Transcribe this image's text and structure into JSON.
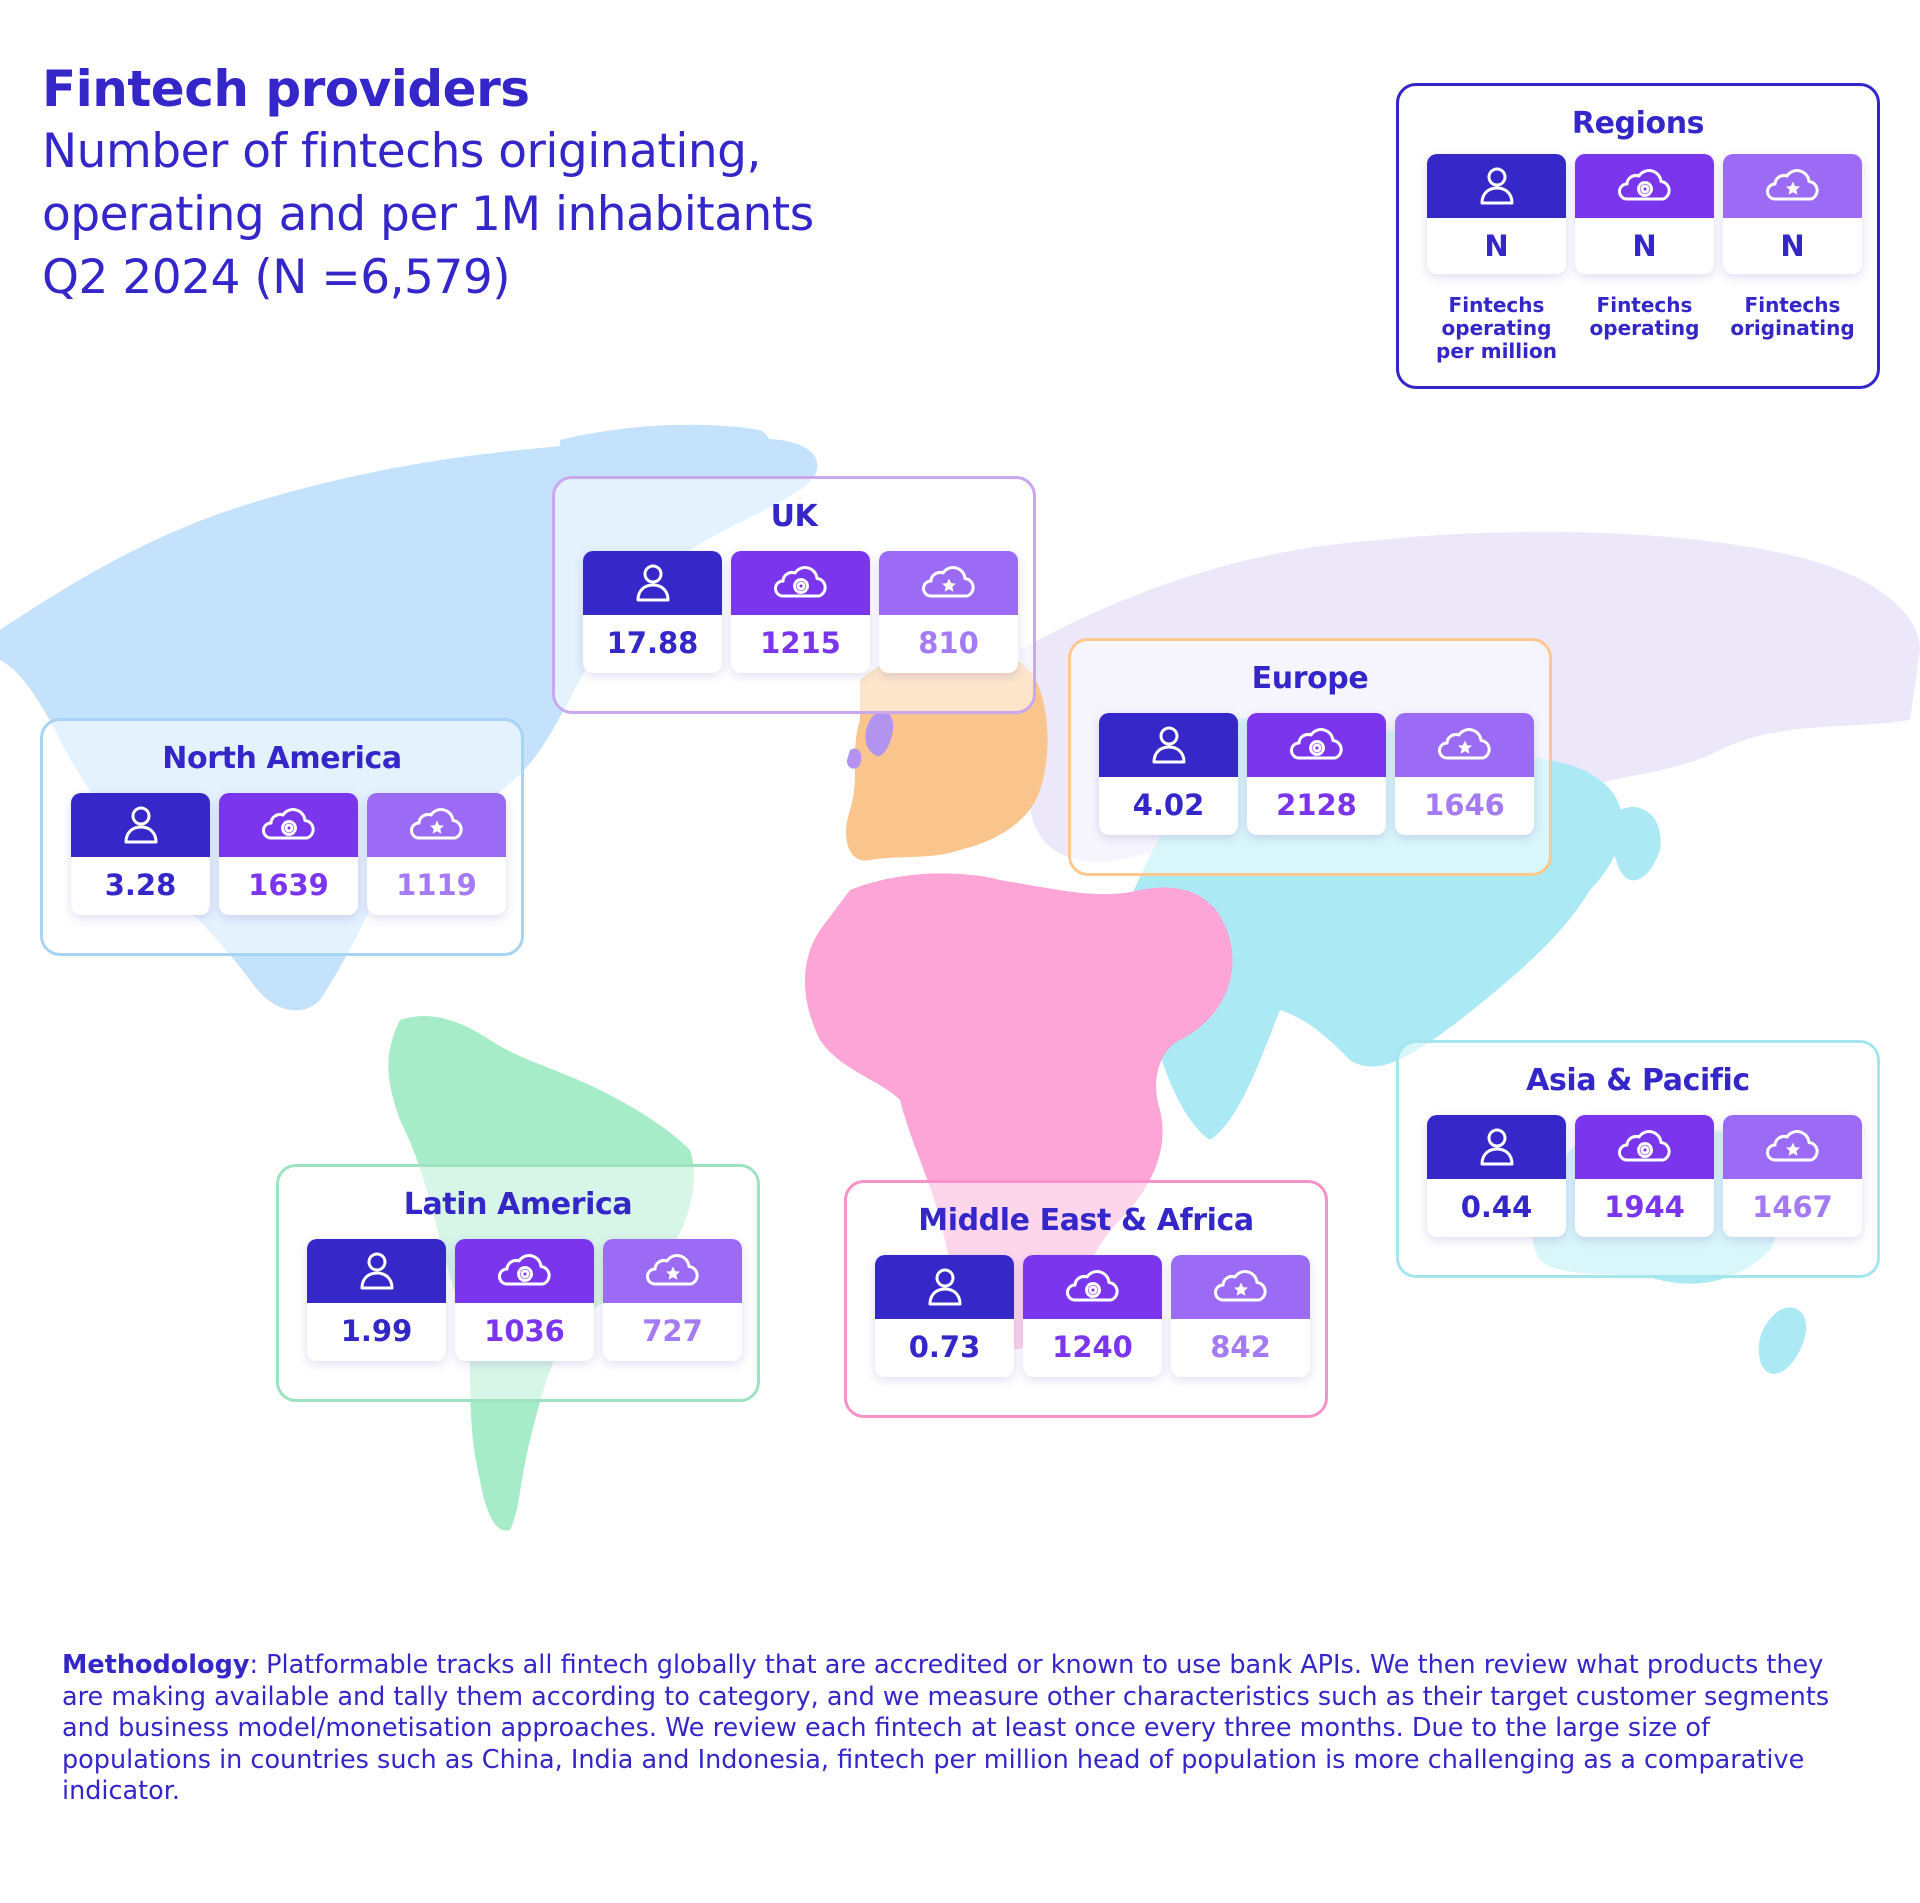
{
  "header": {
    "title": "Fintech providers",
    "subtitle_lines": [
      "Number of fintechs originating,",
      "operating and per 1M inhabitants",
      "Q2 2024 (N =6,579)"
    ]
  },
  "metric_icons": [
    "person-icon",
    "cloud-gear-icon",
    "cloud-star-icon"
  ],
  "legend": {
    "title": "Regions",
    "placeholder": "N",
    "labels": [
      [
        "Fintechs",
        "operating",
        "per million"
      ],
      [
        "Fintechs",
        "operating"
      ],
      [
        "Fintechs",
        "originating"
      ]
    ]
  },
  "regions": [
    {
      "name": "UK",
      "per_million": "17.88",
      "operating": "1215",
      "originating": "810",
      "border_color": "#c9a8ee",
      "map_color": "#b393f0"
    },
    {
      "name": "Europe",
      "per_million": "4.02",
      "operating": "2128",
      "originating": "1646",
      "border_color": "#fbc98f",
      "map_color": "#f9c58c"
    },
    {
      "name": "North America",
      "per_million": "3.28",
      "operating": "1639",
      "originating": "1119",
      "border_color": "#a6d3f6",
      "map_color": "#c4e2fc"
    },
    {
      "name": "Asia & Pacific",
      "per_million": "0.44",
      "operating": "1944",
      "originating": "1467",
      "border_color": "#a5e6ee",
      "map_color": "#abeaf4"
    },
    {
      "name": "Latin America",
      "per_million": "1.99",
      "operating": "1036",
      "originating": "727",
      "border_color": "#9ee3c0",
      "map_color": "#a6ecc9"
    },
    {
      "name": "Middle East & Africa",
      "per_million": "0.73",
      "operating": "1240",
      "originating": "842",
      "border_color": "#f593c9",
      "map_color": "#fca5d6"
    }
  ],
  "map_extra_colors": {
    "russia_north_asia": "#ece8fa"
  },
  "colors": {
    "primary": "#3426c8",
    "per_million": "#3527c8",
    "operating": "#7b35ec",
    "originating": "#9b6bf5"
  },
  "methodology": {
    "label": "Methodology",
    "text": ": Platformable tracks all fintech globally that are accredited or known to use bank APIs. We then review what products they are making available and tally them according to category, and we measure other characteristics such as their target customer segments and business model/monetisation approaches. We review each fintech at least once every three months. Due to the large size of populations in countries such as China, India and Indonesia, fintech per million head of population is more challenging as a comparative indicator."
  }
}
